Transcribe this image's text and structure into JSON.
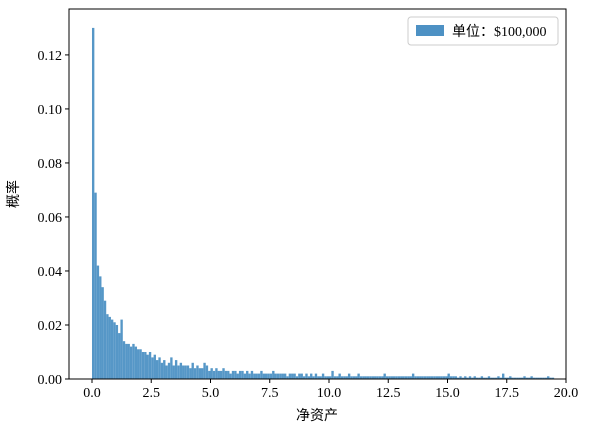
{
  "chart_data": {
    "type": "histogram",
    "xlabel": "净资产",
    "ylabel": "概率",
    "series": [
      {
        "name": "单位：$100,000",
        "color": "#4d91c4",
        "bins": [
          0,
          0.1,
          0.2,
          0.3,
          0.4,
          0.5,
          0.6,
          0.7,
          0.8,
          0.9,
          1,
          1.1,
          1.2,
          1.3,
          1.4,
          1.5,
          1.6,
          1.7,
          1.8,
          1.9,
          2,
          2.1,
          2.2,
          2.3,
          2.4,
          2.5,
          2.6,
          2.7,
          2.8,
          2.9,
          3,
          3.1,
          3.2,
          3.3,
          3.4,
          3.5,
          3.6,
          3.7,
          3.8,
          3.9,
          4,
          4.1,
          4.2,
          4.3,
          4.4,
          4.5,
          4.6,
          4.7,
          4.8,
          4.9,
          5,
          5.1,
          5.2,
          5.3,
          5.4,
          5.5,
          5.6,
          5.7,
          5.8,
          5.9,
          6,
          6.1,
          6.2,
          6.3,
          6.4,
          6.5,
          6.6,
          6.7,
          6.8,
          6.9,
          7,
          7.1,
          7.2,
          7.3,
          7.4,
          7.5,
          7.6,
          7.7,
          7.8,
          7.9,
          8,
          8.1,
          8.2,
          8.3,
          8.4,
          8.5,
          8.6,
          8.7,
          8.8,
          8.9,
          9,
          9.1,
          9.2,
          9.3,
          9.4,
          9.5,
          9.6,
          9.7,
          9.8,
          9.9,
          10,
          10.1,
          10.2,
          10.3,
          10.4,
          10.5,
          10.6,
          10.7,
          10.8,
          10.9,
          11,
          11.1,
          11.2,
          11.3,
          11.4,
          11.5,
          11.6,
          11.7,
          11.8,
          11.9,
          12,
          12.1,
          12.2,
          12.3,
          12.4,
          12.5,
          12.6,
          12.7,
          12.8,
          12.9,
          13,
          13.1,
          13.2,
          13.3,
          13.4,
          13.5,
          13.6,
          13.7,
          13.8,
          13.9,
          14,
          14.1,
          14.2,
          14.3,
          14.4,
          14.5,
          14.6,
          14.7,
          14.8,
          14.9,
          15,
          15.1,
          15.2,
          15.3,
          15.4,
          15.5,
          15.6,
          15.7,
          15.8,
          15.9,
          16,
          16.1,
          16.2,
          16.3,
          16.4,
          16.5,
          16.6,
          16.7,
          16.8,
          16.9,
          17,
          17.1,
          17.2,
          17.3,
          17.4,
          17.5,
          17.6,
          17.7,
          17.8,
          17.9,
          18,
          18.1,
          18.2,
          18.3,
          18.4,
          18.5,
          18.6,
          18.7,
          18.8,
          18.9,
          19,
          19.1,
          19.2,
          19.3,
          19.4,
          19.5
        ],
        "values": [
          0.13,
          0.069,
          0.042,
          0.038,
          0.034,
          0.029,
          0.024,
          0.023,
          0.022,
          0.021,
          0.02,
          0.017,
          0.022,
          0.014,
          0.013,
          0.013,
          0.012,
          0.013,
          0.012,
          0.011,
          0.011,
          0.01,
          0.01,
          0.009,
          0.01,
          0.008,
          0.009,
          0.007,
          0.008,
          0.006,
          0.007,
          0.005,
          0.006,
          0.008,
          0.005,
          0.007,
          0.005,
          0.006,
          0.005,
          0.005,
          0.005,
          0.004,
          0.006,
          0.004,
          0.005,
          0.004,
          0.004,
          0.006,
          0.005,
          0.003,
          0.004,
          0.003,
          0.004,
          0.003,
          0.003,
          0.004,
          0.003,
          0.003,
          0.002,
          0.003,
          0.003,
          0.002,
          0.003,
          0.003,
          0.002,
          0.003,
          0.002,
          0.003,
          0.002,
          0.002,
          0.002,
          0.003,
          0.002,
          0.002,
          0.002,
          0.002,
          0.003,
          0.002,
          0.002,
          0.002,
          0.002,
          0.002,
          0.001,
          0.002,
          0.002,
          0.002,
          0.001,
          0.002,
          0.002,
          0.001,
          0.002,
          0.001,
          0.002,
          0.001,
          0.002,
          0.001,
          0.001,
          0.002,
          0.001,
          0.001,
          0.001,
          0.003,
          0.001,
          0.001,
          0.002,
          0.001,
          0.001,
          0.001,
          0.002,
          0.001,
          0.001,
          0.001,
          0.002,
          0.001,
          0.001,
          0.001,
          0.001,
          0.001,
          0.001,
          0.001,
          0.001,
          0.001,
          0.001,
          0.002,
          0.001,
          0.001,
          0.001,
          0.001,
          0.001,
          0.001,
          0.001,
          0.001,
          0.001,
          0.001,
          0.001,
          0.002,
          0.001,
          0.001,
          0.001,
          0.001,
          0.001,
          0.001,
          0.001,
          0.001,
          0.001,
          0.001,
          0.001,
          0.001,
          0.001,
          0.001,
          0.002,
          0.001,
          0.001,
          0.001,
          0.0005,
          0.001,
          0.0005,
          0.001,
          0.0005,
          0.001,
          0.0005,
          0.001,
          0.0005,
          0.0005,
          0.001,
          0.0005,
          0.0005,
          0.001,
          0.0005,
          0.0005,
          0.0005,
          0.001,
          0.0005,
          0.002,
          0.0005,
          0.0005,
          0.001,
          0.0005,
          0.0005,
          0.0005,
          0.0005,
          0.0005,
          0.001,
          0.0005,
          0.0005,
          0.001,
          0.0005,
          0.0005,
          0.0005,
          0.0005,
          0.0005,
          0.0005,
          0.001,
          0.0005,
          0.0005
        ]
      }
    ],
    "xlim": [
      -0.97,
      20
    ],
    "ylim": [
      0,
      0.137
    ],
    "xticks": [
      {
        "value": 0,
        "label": "0.0"
      },
      2.5,
      {
        "value": 5,
        "label": "5.0"
      },
      7.5,
      {
        "value": 10,
        "label": "10.0"
      },
      12.5,
      {
        "value": 15,
        "label": "15.0"
      },
      17.5,
      {
        "value": 20,
        "label": "20.0"
      }
    ],
    "yticks": [
      {
        "value": 0,
        "label": "0.00"
      },
      {
        "value": 0.02,
        "label": "0.02"
      },
      {
        "value": 0.04,
        "label": "0.04"
      },
      {
        "value": 0.06,
        "label": "0.06"
      },
      {
        "value": 0.08,
        "label": "0.08"
      },
      {
        "value": 0.1,
        "label": "0.10"
      },
      {
        "value": 0.12,
        "label": "0.12"
      }
    ],
    "legend": "upper right"
  }
}
